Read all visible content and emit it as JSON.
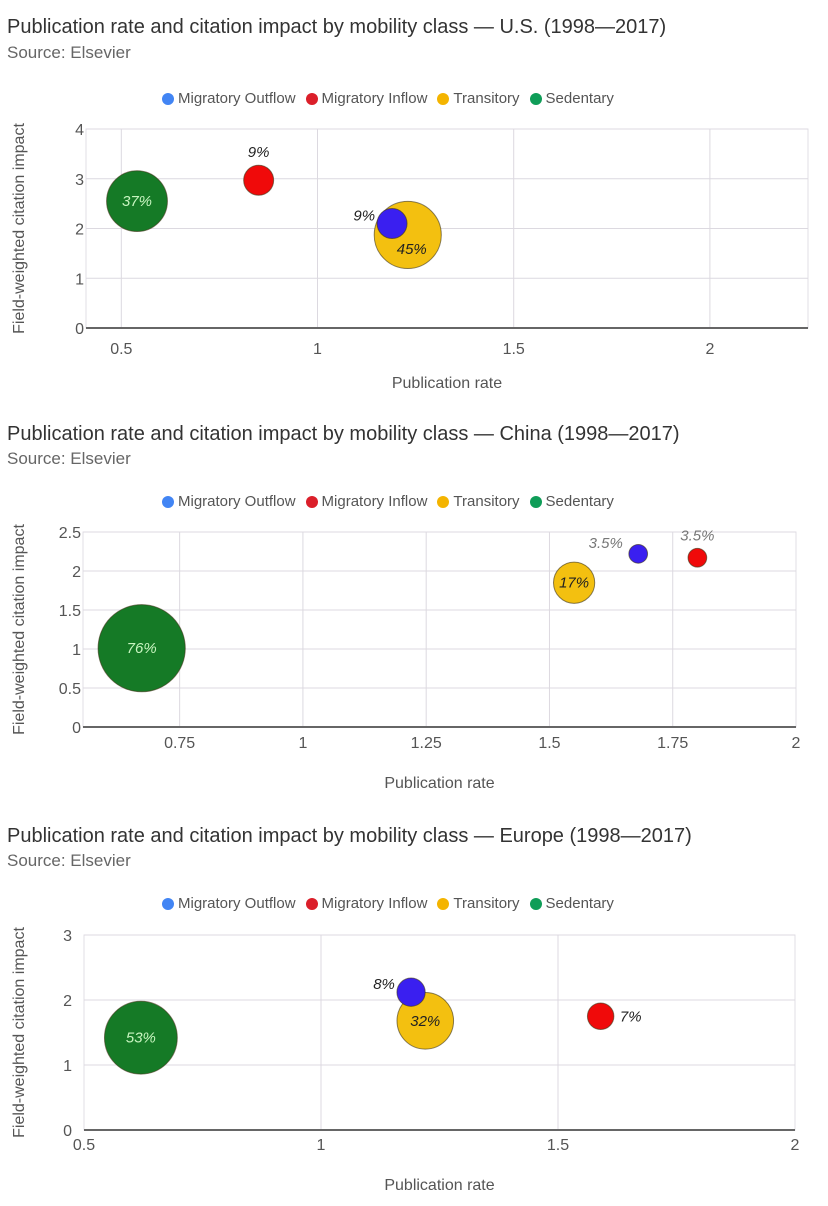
{
  "legend": [
    {
      "name": "Migratory Outflow",
      "color": "#4285f4"
    },
    {
      "name": "Migratory Inflow",
      "color": "#db1f2a"
    },
    {
      "name": "Transitory",
      "color": "#f4b400"
    },
    {
      "name": "Sedentary",
      "color": "#0f9d58"
    }
  ],
  "chart_data": [
    {
      "type": "scatter",
      "subtype": "bubble",
      "title": "Publication rate and citation impact by mobility class — U.S. (1998—2017)",
      "subtitle": "Source: Elsevier",
      "xlabel": "Publication rate",
      "ylabel": "Field-weighted citation impact",
      "xlim": [
        0.41,
        2.25
      ],
      "ylim": [
        0,
        4
      ],
      "xticks": [
        "0.5",
        "1",
        "1.5",
        "2"
      ],
      "xtick_values": [
        0.5,
        1,
        1.5,
        2
      ],
      "yticks": [
        "0",
        "1",
        "2",
        "3",
        "4"
      ],
      "ytick_values": [
        0,
        1,
        2,
        3,
        4
      ],
      "grid": true,
      "legend_position": "top",
      "points": [
        {
          "series": "Sedentary",
          "x": 0.54,
          "y": 2.55,
          "share": 37,
          "label": "37%",
          "color": "#157a26",
          "label_color": "#c8f5c0",
          "label_pos": "center"
        },
        {
          "series": "Migratory Inflow",
          "x": 0.85,
          "y": 2.97,
          "share": 9,
          "label": "9%",
          "color": "#f00a0a",
          "label_color": "#222",
          "label_pos": "above"
        },
        {
          "series": "Transitory",
          "x": 1.23,
          "y": 1.87,
          "share": 45,
          "label": "45%",
          "color": "#f3c010",
          "label_color": "#222",
          "label_pos": "center-low"
        },
        {
          "series": "Migratory Outflow",
          "x": 1.19,
          "y": 2.1,
          "share": 9,
          "label": "9%",
          "color": "#3a1ff0",
          "label_color": "#222",
          "label_pos": "left"
        }
      ]
    },
    {
      "type": "scatter",
      "subtype": "bubble",
      "title": "Publication rate and citation impact by mobility class — China (1998—2017)",
      "subtitle": "Source: Elsevier",
      "xlabel": "Publication rate",
      "ylabel": "Field-weighted citation impact",
      "xlim": [
        0.554,
        2
      ],
      "ylim": [
        0,
        2.5
      ],
      "xticks": [
        "0.75",
        "1",
        "1.25",
        "1.5",
        "1.75",
        "2"
      ],
      "xtick_values": [
        0.75,
        1,
        1.25,
        1.5,
        1.75,
        2
      ],
      "yticks": [
        "0",
        "0.5",
        "1",
        "1.5",
        "2",
        "2.5"
      ],
      "ytick_values": [
        0,
        0.5,
        1,
        1.5,
        2,
        2.5
      ],
      "grid": true,
      "legend_position": "top",
      "points": [
        {
          "series": "Sedentary",
          "x": 0.673,
          "y": 1.01,
          "share": 76,
          "label": "76%",
          "color": "#157a26",
          "label_color": "#c8f5c0",
          "label_pos": "center"
        },
        {
          "series": "Transitory",
          "x": 1.55,
          "y": 1.85,
          "share": 17,
          "label": "17%",
          "color": "#f3c010",
          "label_color": "#222",
          "label_pos": "center"
        },
        {
          "series": "Migratory Outflow",
          "x": 1.68,
          "y": 2.22,
          "share": 3.5,
          "label": "3.5%",
          "color": "#3a1ff0",
          "label_color": "#777",
          "label_pos": "left-up"
        },
        {
          "series": "Migratory Inflow",
          "x": 1.8,
          "y": 2.17,
          "share": 3.5,
          "label": "3.5%",
          "color": "#f00a0a",
          "label_color": "#777",
          "label_pos": "above"
        }
      ]
    },
    {
      "type": "scatter",
      "subtype": "bubble",
      "title": "Publication rate and citation impact by mobility class — Europe (1998—2017)",
      "subtitle": "Source: Elsevier",
      "xlabel": "Publication rate",
      "ylabel": "Field-weighted citation impact",
      "xlim": [
        0.5,
        2
      ],
      "ylim": [
        0,
        3
      ],
      "xticks": [
        "0.5",
        "1",
        "1.5",
        "2"
      ],
      "xtick_values": [
        0.5,
        1,
        1.5,
        2
      ],
      "yticks": [
        "0",
        "1",
        "2",
        "3"
      ],
      "ytick_values": [
        0,
        1,
        2,
        3
      ],
      "grid": true,
      "legend_position": "top",
      "points": [
        {
          "series": "Sedentary",
          "x": 0.62,
          "y": 1.42,
          "share": 53,
          "label": "53%",
          "color": "#157a26",
          "label_color": "#c8f5c0",
          "label_pos": "center"
        },
        {
          "series": "Transitory",
          "x": 1.22,
          "y": 1.68,
          "share": 32,
          "label": "32%",
          "color": "#f3c010",
          "label_color": "#222",
          "label_pos": "center"
        },
        {
          "series": "Migratory Outflow",
          "x": 1.19,
          "y": 2.12,
          "share": 8,
          "label": "8%",
          "color": "#3a1ff0",
          "label_color": "#222",
          "label_pos": "left"
        },
        {
          "series": "Migratory Inflow",
          "x": 1.59,
          "y": 1.75,
          "share": 7,
          "label": "7%",
          "color": "#f00a0a",
          "label_color": "#222",
          "label_pos": "right"
        }
      ]
    }
  ]
}
